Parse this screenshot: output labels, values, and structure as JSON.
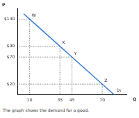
{
  "chart_data": {
    "type": "line",
    "caption": "The graph shows the demand for a good.",
    "x_label": "Q",
    "y_label": "P",
    "series": [
      {
        "name": "D₁",
        "color": "#3b7dd8",
        "marker": "none",
        "line_style": "solid",
        "x": [
          5,
          10,
          35,
          45,
          70,
          80
        ],
        "values": [
          150,
          140,
          90,
          70,
          20,
          0
        ],
        "point_labels": [
          null,
          "W",
          "X",
          "Y",
          "Z",
          null
        ]
      }
    ],
    "xlim": [
      0,
      90
    ],
    "ylim": [
      0,
      160
    ],
    "xticks": [
      10,
      35,
      45,
      70
    ],
    "yticks": [
      {
        "value": 20,
        "label": "$20"
      },
      {
        "value": 70,
        "label": "$70"
      },
      {
        "value": 90,
        "label": "$90"
      },
      {
        "value": 140,
        "label": "$140"
      }
    ],
    "grid": false
  }
}
